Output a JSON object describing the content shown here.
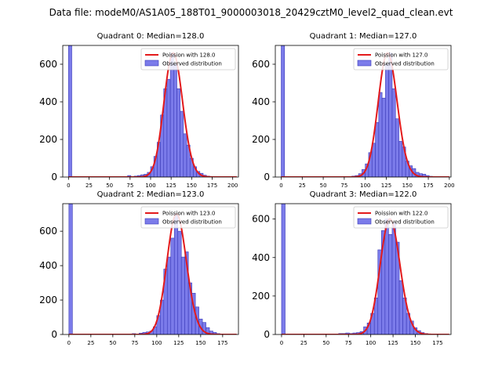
{
  "figure_title": "Data file: modeM0/AS1A05_188T01_9000003018_20429cztM0_level2_quad_clean.evt",
  "colors": {
    "bar_fill": "#7b7bea",
    "bar_edge": "#3a3ab8",
    "curve": "#e31a1c"
  },
  "chart_data": [
    {
      "type": "bar",
      "title": "Quadrant 0: Median=128.0",
      "median": 128.0,
      "legend": {
        "curve": "Poission with 128.0",
        "bars": "Observed distribution",
        "placement": "top-right"
      },
      "xlim": [
        -7,
        207
      ],
      "ylim": [
        0,
        700
      ],
      "xticks": [
        0,
        25,
        50,
        75,
        100,
        125,
        150,
        175,
        200
      ],
      "yticks": [
        0,
        200,
        400,
        600
      ],
      "bin_width": 4,
      "bins": [
        {
          "x": 0,
          "count": 700
        },
        {
          "x": 72,
          "count": 8
        },
        {
          "x": 76,
          "count": 3
        },
        {
          "x": 80,
          "count": 5
        },
        {
          "x": 84,
          "count": 8
        },
        {
          "x": 88,
          "count": 12
        },
        {
          "x": 92,
          "count": 15
        },
        {
          "x": 96,
          "count": 25
        },
        {
          "x": 100,
          "count": 55
        },
        {
          "x": 104,
          "count": 110
        },
        {
          "x": 108,
          "count": 185
        },
        {
          "x": 112,
          "count": 330
        },
        {
          "x": 116,
          "count": 470
        },
        {
          "x": 120,
          "count": 520
        },
        {
          "x": 124,
          "count": 660
        },
        {
          "x": 128,
          "count": 600
        },
        {
          "x": 132,
          "count": 470
        },
        {
          "x": 136,
          "count": 350
        },
        {
          "x": 140,
          "count": 230
        },
        {
          "x": 144,
          "count": 170
        },
        {
          "x": 148,
          "count": 100
        },
        {
          "x": 152,
          "count": 55
        },
        {
          "x": 156,
          "count": 30
        },
        {
          "x": 160,
          "count": 20
        },
        {
          "x": 164,
          "count": 10
        },
        {
          "x": 168,
          "count": 5
        },
        {
          "x": 172,
          "count": 3
        }
      ]
    },
    {
      "type": "bar",
      "title": "Quadrant 1: Median=127.0",
      "median": 127.0,
      "legend": {
        "curve": "Poission with 127.0",
        "bars": "Observed distribution",
        "placement": "top-right"
      },
      "xlim": [
        -7,
        202
      ],
      "ylim": [
        0,
        700
      ],
      "xticks": [
        0,
        25,
        50,
        75,
        100,
        125,
        150,
        175,
        200
      ],
      "yticks": [
        0,
        200,
        400,
        600
      ],
      "bin_width": 4,
      "bins": [
        {
          "x": 0,
          "count": 700
        },
        {
          "x": 84,
          "count": 5
        },
        {
          "x": 88,
          "count": 8
        },
        {
          "x": 92,
          "count": 18
        },
        {
          "x": 96,
          "count": 40
        },
        {
          "x": 100,
          "count": 70
        },
        {
          "x": 104,
          "count": 130
        },
        {
          "x": 108,
          "count": 180
        },
        {
          "x": 112,
          "count": 290
        },
        {
          "x": 116,
          "count": 450
        },
        {
          "x": 120,
          "count": 420
        },
        {
          "x": 124,
          "count": 600
        },
        {
          "x": 128,
          "count": 660
        },
        {
          "x": 132,
          "count": 470
        },
        {
          "x": 136,
          "count": 310
        },
        {
          "x": 140,
          "count": 190
        },
        {
          "x": 144,
          "count": 160
        },
        {
          "x": 148,
          "count": 85
        },
        {
          "x": 152,
          "count": 60
        },
        {
          "x": 156,
          "count": 45
        },
        {
          "x": 160,
          "count": 25
        },
        {
          "x": 164,
          "count": 18
        },
        {
          "x": 168,
          "count": 15
        },
        {
          "x": 172,
          "count": 8
        },
        {
          "x": 176,
          "count": 4
        }
      ]
    },
    {
      "type": "bar",
      "title": "Quadrant 2: Median=123.0",
      "median": 123.0,
      "legend": {
        "curve": "Poission with 123.0",
        "bars": "Observed distribution",
        "placement": "top-right"
      },
      "xlim": [
        -7,
        193
      ],
      "ylim": [
        0,
        760
      ],
      "xticks": [
        0,
        25,
        50,
        75,
        100,
        125,
        150,
        175
      ],
      "yticks": [
        0,
        200,
        400,
        600
      ],
      "bin_width": 4,
      "bins": [
        {
          "x": 0,
          "count": 760
        },
        {
          "x": 72,
          "count": 5
        },
        {
          "x": 76,
          "count": 3
        },
        {
          "x": 80,
          "count": 8
        },
        {
          "x": 84,
          "count": 12
        },
        {
          "x": 88,
          "count": 15
        },
        {
          "x": 92,
          "count": 20
        },
        {
          "x": 96,
          "count": 45
        },
        {
          "x": 100,
          "count": 110
        },
        {
          "x": 104,
          "count": 200
        },
        {
          "x": 108,
          "count": 380
        },
        {
          "x": 112,
          "count": 450
        },
        {
          "x": 116,
          "count": 560
        },
        {
          "x": 120,
          "count": 700
        },
        {
          "x": 124,
          "count": 600
        },
        {
          "x": 128,
          "count": 450
        },
        {
          "x": 132,
          "count": 480
        },
        {
          "x": 136,
          "count": 300
        },
        {
          "x": 140,
          "count": 240
        },
        {
          "x": 144,
          "count": 160
        },
        {
          "x": 148,
          "count": 90
        },
        {
          "x": 152,
          "count": 70
        },
        {
          "x": 156,
          "count": 40
        },
        {
          "x": 160,
          "count": 20
        },
        {
          "x": 164,
          "count": 12
        },
        {
          "x": 168,
          "count": 5
        }
      ]
    },
    {
      "type": "bar",
      "title": "Quadrant 3: Median=122.0",
      "median": 122.0,
      "legend": {
        "curve": "Poission with 122.0",
        "bars": "Observed distribution",
        "placement": "top-right"
      },
      "xlim": [
        -7,
        190
      ],
      "ylim": [
        0,
        680
      ],
      "xticks": [
        0,
        25,
        50,
        75,
        100,
        125,
        150,
        175
      ],
      "yticks": [
        0,
        200,
        400,
        600
      ],
      "bin_width": 4,
      "bins": [
        {
          "x": 0,
          "count": 680
        },
        {
          "x": 64,
          "count": 5
        },
        {
          "x": 68,
          "count": 5
        },
        {
          "x": 72,
          "count": 8
        },
        {
          "x": 76,
          "count": 5
        },
        {
          "x": 80,
          "count": 8
        },
        {
          "x": 84,
          "count": 10
        },
        {
          "x": 88,
          "count": 15
        },
        {
          "x": 92,
          "count": 40
        },
        {
          "x": 96,
          "count": 60
        },
        {
          "x": 100,
          "count": 110
        },
        {
          "x": 104,
          "count": 190
        },
        {
          "x": 108,
          "count": 440
        },
        {
          "x": 112,
          "count": 540
        },
        {
          "x": 116,
          "count": 600
        },
        {
          "x": 120,
          "count": 520
        },
        {
          "x": 124,
          "count": 580
        },
        {
          "x": 128,
          "count": 480
        },
        {
          "x": 132,
          "count": 280
        },
        {
          "x": 136,
          "count": 190
        },
        {
          "x": 140,
          "count": 110
        },
        {
          "x": 144,
          "count": 70
        },
        {
          "x": 148,
          "count": 35
        },
        {
          "x": 152,
          "count": 20
        },
        {
          "x": 156,
          "count": 10
        },
        {
          "x": 160,
          "count": 5
        }
      ]
    }
  ]
}
